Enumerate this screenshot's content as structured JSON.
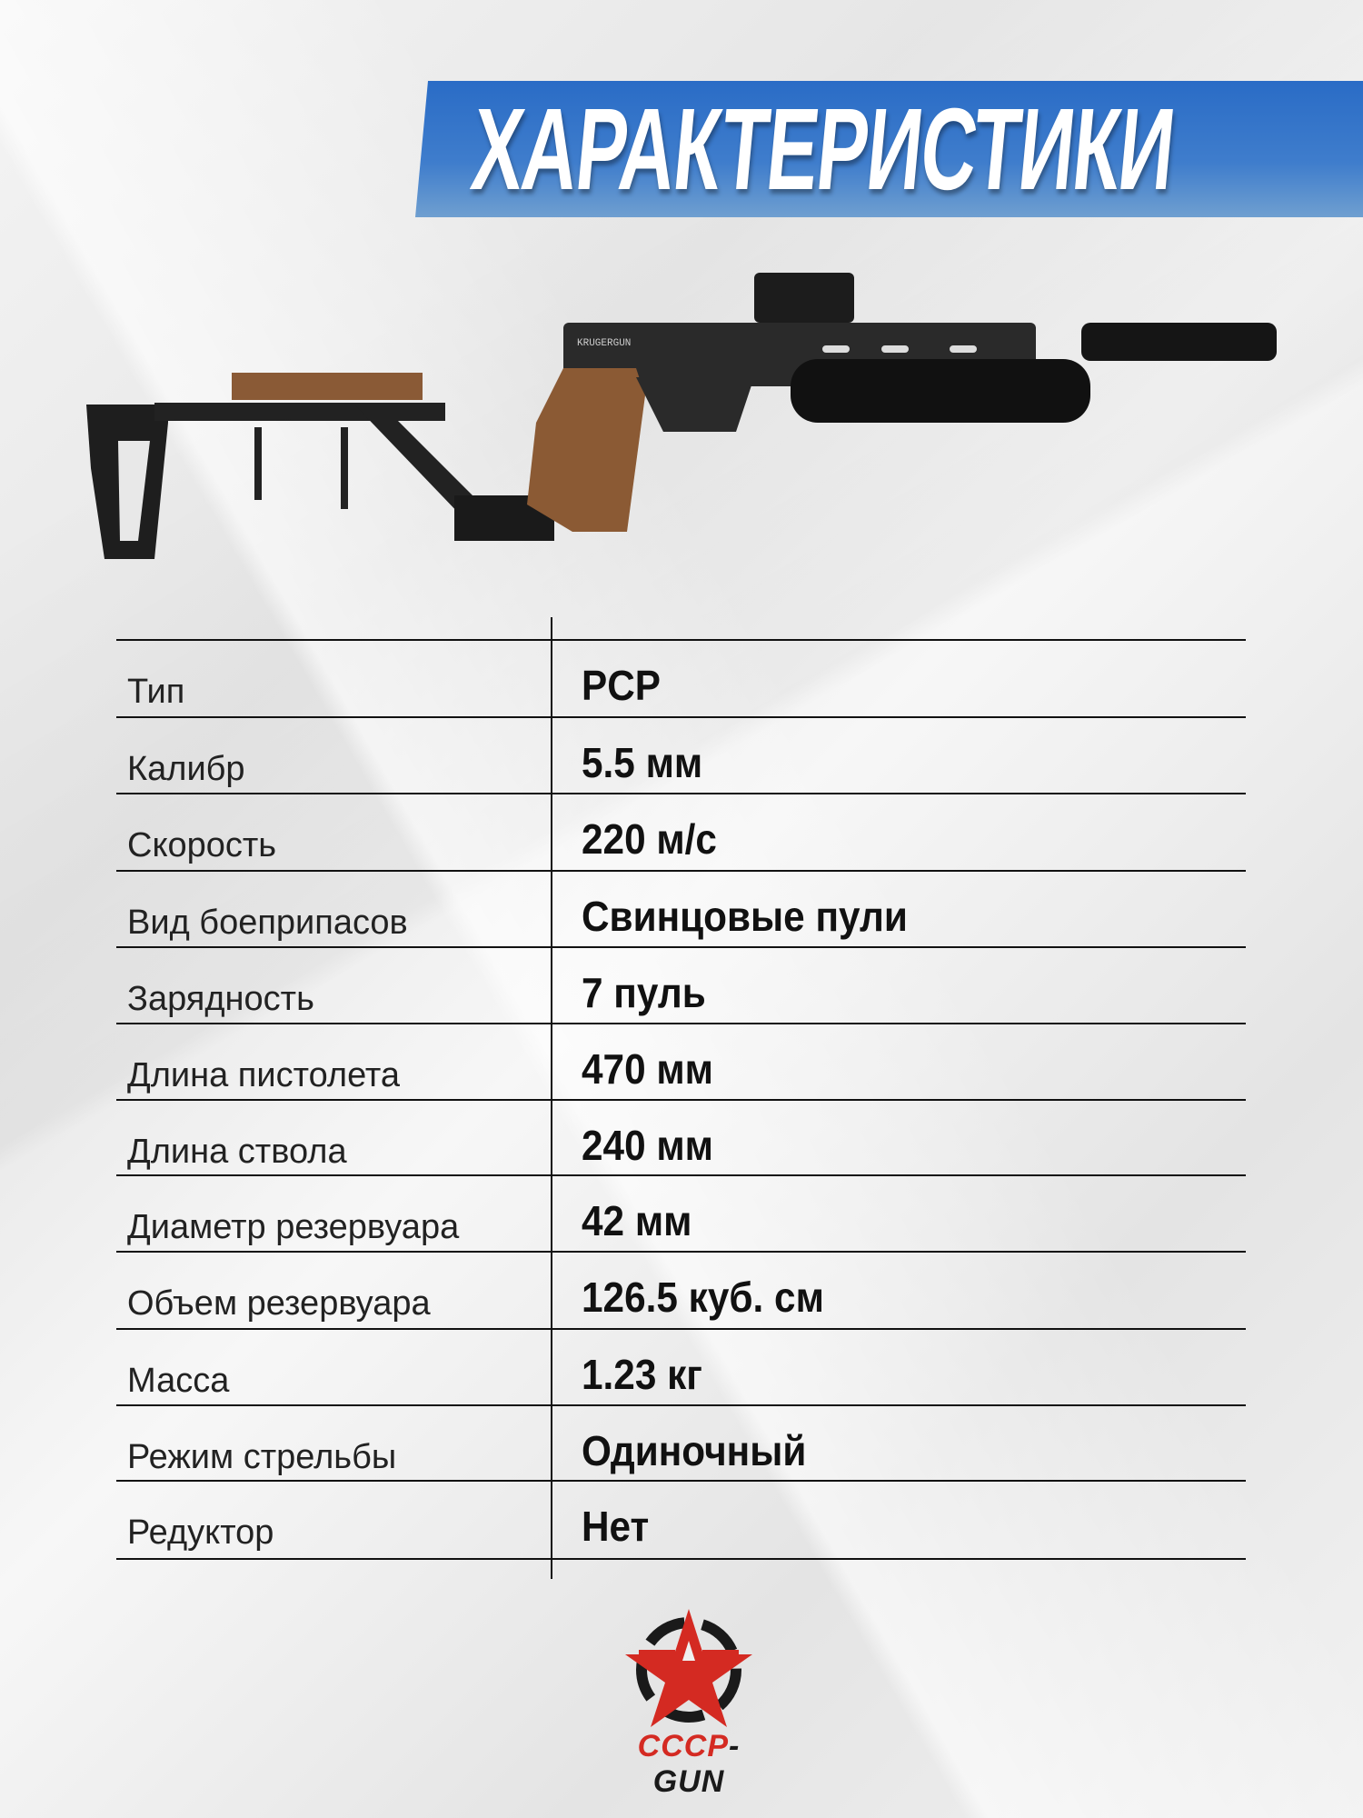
{
  "header": {
    "title": "ХАРАКТЕРИСТИКИ"
  },
  "product_image": {
    "name": "pcp-air-pistol-with-stock",
    "engraving": "KRUGERGUN"
  },
  "specs": [
    {
      "label": "Тип",
      "value": "PCP"
    },
    {
      "label": "Калибр",
      "value": "5.5 мм"
    },
    {
      "label": "Скорость",
      "value": "220 м/с"
    },
    {
      "label": "Вид боеприпасов",
      "value": "Свинцовые пули"
    },
    {
      "label": "Зарядность",
      "value": "7 пуль"
    },
    {
      "label": "Длина пистолета",
      "value": "470 мм"
    },
    {
      "label": "Длина ствола",
      "value": "240 мм"
    },
    {
      "label": "Диаметр резервуара",
      "value": "42 мм"
    },
    {
      "label": "Объем резервуара",
      "value": "126.5 куб. см"
    },
    {
      "label": "Масса",
      "value": "1.23 кг"
    },
    {
      "label": "Режим стрельбы",
      "value": "Одиночный"
    },
    {
      "label": "Редуктор",
      "value": "Нет"
    }
  ],
  "logo": {
    "part1": "CCCP",
    "part2": "-GUN"
  },
  "colors": {
    "banner": "#2a6cc6",
    "logo_red": "#d42a22",
    "text": "#111111"
  }
}
